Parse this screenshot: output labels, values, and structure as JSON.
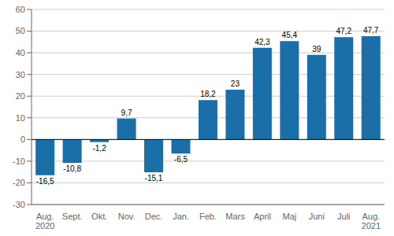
{
  "chart_data": {
    "type": "bar",
    "categories": [
      "Aug.\n2020",
      "Sept.",
      "Okt.",
      "Nov.",
      "Dec.",
      "Jan.",
      "Feb.",
      "Mars",
      "April",
      "Maj",
      "Juni",
      "Juli",
      "Aug.\n2021"
    ],
    "values": [
      -16.5,
      -10.8,
      -1.2,
      9.7,
      -15.1,
      -6.5,
      18.2,
      23,
      42.3,
      45.4,
      39,
      47.2,
      47.7
    ],
    "value_labels": [
      "-16,5",
      "-10,8",
      "-1,2",
      "9,7",
      "-15,1",
      "-6,5",
      "18,2",
      "23",
      "42,3",
      "45,4",
      "39",
      "47,2",
      "47,7"
    ],
    "data_labels": true,
    "color": "#1a6fa8",
    "ylim": [
      -30,
      60
    ],
    "yticks": [
      -30,
      -20,
      -10,
      0,
      10,
      20,
      30,
      40,
      50,
      60
    ],
    "grid": true
  }
}
